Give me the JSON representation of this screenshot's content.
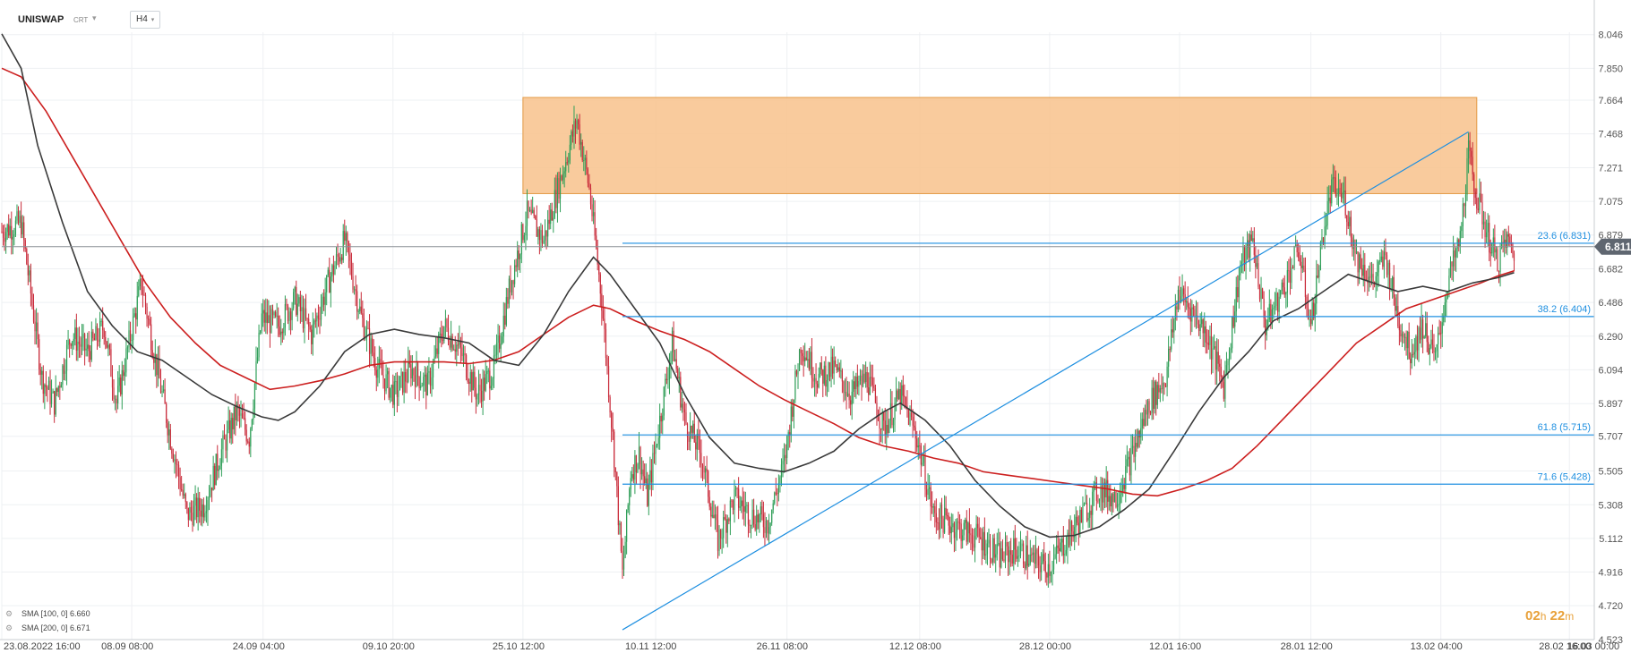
{
  "header": {
    "symbol": "UNISWAP",
    "instrument_type": "CRT",
    "timeframe": "H4"
  },
  "indicators": [
    {
      "label": "SMA [100, 0]",
      "value": "6.660",
      "color": "#3a3a3a"
    },
    {
      "label": "SMA [200, 0]",
      "value": "6.671",
      "color": "#cc1f1f"
    }
  ],
  "countdown": {
    "hours": "02",
    "h_unit": "h",
    "minutes": "22",
    "m_unit": "m"
  },
  "current_price": {
    "label": "6.811",
    "value": 6.811
  },
  "icons": [
    "dropdown-caret-icon",
    "legend-settings-icon"
  ],
  "colors": {
    "bull": "#2e9e57",
    "bear": "#c92b3a",
    "sma100": "#3a3a3a",
    "sma200": "#cc1f1f",
    "fib": "#1e8fe0",
    "trend": "#1e8fe0",
    "zone_fill": "#f8c48f",
    "zone_stroke": "#e39a46",
    "price_tag": "#5f6670",
    "countdown": "#e8a13a"
  },
  "chart_data": {
    "type": "candlestick",
    "symbol": "UNISWAP",
    "timeframe": "H4",
    "y_axis": {
      "range": [
        4.523,
        8.06
      ],
      "tick_labels": [
        "8.046",
        "7.850",
        "7.664",
        "7.468",
        "7.271",
        "7.075",
        "6.879",
        "6.682",
        "6.486",
        "6.290",
        "6.094",
        "5.897",
        "5.707",
        "5.505",
        "5.308",
        "5.112",
        "4.916",
        "4.720",
        "4.523"
      ],
      "tick_values": [
        8.046,
        7.85,
        7.664,
        7.468,
        7.271,
        7.075,
        6.879,
        6.682,
        6.486,
        6.29,
        6.094,
        5.897,
        5.707,
        5.505,
        5.308,
        5.112,
        4.916,
        4.72,
        4.523
      ]
    },
    "x_axis": {
      "range": [
        "2022-08-23 16:00",
        "2023-03-03 16:00"
      ],
      "tick_labels": [
        "23.08.2022  16:00",
        "08.09  08:00",
        "24.09  04:00",
        "09.10  20:00",
        "25.10  12:00",
        "10.11  12:00",
        "26.11  08:00",
        "12.12  08:00",
        "28.12  00:00",
        "12.01  16:00",
        "28.01  12:00",
        "13.02  04:00",
        "28.02  16:00",
        "16.03  00:00"
      ],
      "tick_dates": [
        "2022-08-23 16:00",
        "2022-09-08 08:00",
        "2022-09-24 04:00",
        "2022-10-09 20:00",
        "2022-10-25 12:00",
        "2022-11-10 12:00",
        "2022-11-26 08:00",
        "2022-12-12 08:00",
        "2022-12-28 00:00",
        "2023-01-12 16:00",
        "2023-01-28 12:00",
        "2023-02-13 04:00",
        "2023-02-28 16:00",
        "2023-03-16 00:00"
      ]
    },
    "price_path": [
      [
        "2022-08-23 16:00",
        6.9
      ],
      [
        "2022-08-26 00:00",
        6.95
      ],
      [
        "2022-08-27 00:00",
        6.6
      ],
      [
        "2022-08-28 12:00",
        6.05
      ],
      [
        "2022-08-30 00:00",
        5.9
      ],
      [
        "2022-09-01 00:00",
        6.3
      ],
      [
        "2022-09-03 00:00",
        6.2
      ],
      [
        "2022-09-05 00:00",
        6.35
      ],
      [
        "2022-09-06 12:00",
        5.9
      ],
      [
        "2022-09-08 00:00",
        6.25
      ],
      [
        "2022-09-09 12:00",
        6.6
      ],
      [
        "2022-09-11 00:00",
        6.2
      ],
      [
        "2022-09-13 00:00",
        5.7
      ],
      [
        "2022-09-15 00:00",
        5.25
      ],
      [
        "2022-09-17 00:00",
        5.3
      ],
      [
        "2022-09-19 00:00",
        5.6
      ],
      [
        "2022-09-21 00:00",
        5.85
      ],
      [
        "2022-09-22 12:00",
        5.7
      ],
      [
        "2022-09-24 00:00",
        6.4
      ],
      [
        "2022-09-26 00:00",
        6.35
      ],
      [
        "2022-09-28 00:00",
        6.5
      ],
      [
        "2022-09-30 00:00",
        6.3
      ],
      [
        "2022-10-02 00:00",
        6.6
      ],
      [
        "2022-10-04 00:00",
        6.85
      ],
      [
        "2022-10-06 00:00",
        6.4
      ],
      [
        "2022-10-08 00:00",
        6.1
      ],
      [
        "2022-10-10 00:00",
        5.95
      ],
      [
        "2022-10-12 00:00",
        6.1
      ],
      [
        "2022-10-14 00:00",
        6.0
      ],
      [
        "2022-10-16 00:00",
        6.35
      ],
      [
        "2022-10-18 00:00",
        6.2
      ],
      [
        "2022-10-20 00:00",
        5.95
      ],
      [
        "2022-10-22 00:00",
        6.1
      ],
      [
        "2022-10-24 00:00",
        6.6
      ],
      [
        "2022-10-26 00:00",
        7.0
      ],
      [
        "2022-10-28 00:00",
        6.85
      ],
      [
        "2022-10-30 00:00",
        7.2
      ],
      [
        "2022-11-01 00:00",
        7.55
      ],
      [
        "2022-11-02 12:00",
        7.15
      ],
      [
        "2022-11-04 00:00",
        6.5
      ],
      [
        "2022-11-05 12:00",
        5.6
      ],
      [
        "2022-11-06 12:00",
        4.9
      ],
      [
        "2022-11-07 12:00",
        5.5
      ],
      [
        "2022-11-08 12:00",
        5.6
      ],
      [
        "2022-11-09 12:00",
        5.35
      ],
      [
        "2022-11-11 00:00",
        5.8
      ],
      [
        "2022-11-12 12:00",
        6.25
      ],
      [
        "2022-11-14 00:00",
        5.8
      ],
      [
        "2022-11-16 00:00",
        5.6
      ],
      [
        "2022-11-18 00:00",
        5.1
      ],
      [
        "2022-11-20 00:00",
        5.35
      ],
      [
        "2022-11-22 00:00",
        5.25
      ],
      [
        "2022-11-24 00:00",
        5.2
      ],
      [
        "2022-11-26 00:00",
        5.55
      ],
      [
        "2022-11-28 00:00",
        6.25
      ],
      [
        "2022-11-30 00:00",
        6.05
      ],
      [
        "2022-12-02 00:00",
        6.1
      ],
      [
        "2022-12-04 00:00",
        5.95
      ],
      [
        "2022-12-06 00:00",
        6.05
      ],
      [
        "2022-12-08 00:00",
        5.75
      ],
      [
        "2022-12-10 00:00",
        5.95
      ],
      [
        "2022-12-12 00:00",
        5.7
      ],
      [
        "2022-12-14 00:00",
        5.25
      ],
      [
        "2022-12-16 00:00",
        5.2
      ],
      [
        "2022-12-18 00:00",
        5.15
      ],
      [
        "2022-12-20 00:00",
        5.1
      ],
      [
        "2022-12-22 00:00",
        5.0
      ],
      [
        "2022-12-24 00:00",
        5.05
      ],
      [
        "2022-12-26 00:00",
        4.98
      ],
      [
        "2022-12-28 00:00",
        4.95
      ],
      [
        "2022-12-30 00:00",
        5.1
      ],
      [
        "2023-01-01 00:00",
        5.25
      ],
      [
        "2023-01-03 00:00",
        5.4
      ],
      [
        "2023-01-05 00:00",
        5.35
      ],
      [
        "2023-01-07 00:00",
        5.6
      ],
      [
        "2023-01-09 00:00",
        5.9
      ],
      [
        "2023-01-11 00:00",
        6.05
      ],
      [
        "2023-01-12 12:00",
        6.55
      ],
      [
        "2023-01-14 00:00",
        6.45
      ],
      [
        "2023-01-16 00:00",
        6.3
      ],
      [
        "2023-01-18 00:00",
        6.0
      ],
      [
        "2023-01-20 00:00",
        6.7
      ],
      [
        "2023-01-21 12:00",
        6.85
      ],
      [
        "2023-01-23 00:00",
        6.35
      ],
      [
        "2023-01-25 00:00",
        6.55
      ],
      [
        "2023-01-27 00:00",
        6.8
      ],
      [
        "2023-01-28 12:00",
        6.35
      ],
      [
        "2023-01-30 00:00",
        6.9
      ],
      [
        "2023-01-31 00:00",
        7.15
      ],
      [
        "2023-02-01 12:00",
        7.1
      ],
      [
        "2023-02-03 00:00",
        6.75
      ],
      [
        "2023-02-05 00:00",
        6.6
      ],
      [
        "2023-02-06 12:00",
        6.75
      ],
      [
        "2023-02-08 00:00",
        6.4
      ],
      [
        "2023-02-09 12:00",
        6.2
      ],
      [
        "2023-02-11 00:00",
        6.35
      ],
      [
        "2023-02-12 12:00",
        6.15
      ],
      [
        "2023-02-14 00:00",
        6.6
      ],
      [
        "2023-02-15 12:00",
        6.85
      ],
      [
        "2023-02-16 12:00",
        7.35
      ],
      [
        "2023-02-17 12:00",
        7.1
      ],
      [
        "2023-02-19 00:00",
        6.85
      ],
      [
        "2023-02-20 00:00",
        6.72
      ],
      [
        "2023-02-21 00:00",
        6.85
      ],
      [
        "2023-02-22 00:00",
        6.78
      ]
    ],
    "sma_100": [
      [
        "2022-08-23 16:00",
        8.05
      ],
      [
        "2022-08-26 00:00",
        7.85
      ],
      [
        "2022-08-28 00:00",
        7.4
      ],
      [
        "2022-08-31 00:00",
        6.95
      ],
      [
        "2022-09-03 00:00",
        6.55
      ],
      [
        "2022-09-06 00:00",
        6.35
      ],
      [
        "2022-09-09 00:00",
        6.2
      ],
      [
        "2022-09-12 00:00",
        6.15
      ],
      [
        "2022-09-15 00:00",
        6.05
      ],
      [
        "2022-09-18 00:00",
        5.95
      ],
      [
        "2022-09-21 00:00",
        5.88
      ],
      [
        "2022-09-24 00:00",
        5.82
      ],
      [
        "2022-09-26 00:00",
        5.8
      ],
      [
        "2022-09-28 00:00",
        5.85
      ],
      [
        "2022-10-01 00:00",
        6.0
      ],
      [
        "2022-10-04 00:00",
        6.2
      ],
      [
        "2022-10-07 00:00",
        6.3
      ],
      [
        "2022-10-10 00:00",
        6.33
      ],
      [
        "2022-10-13 00:00",
        6.3
      ],
      [
        "2022-10-16 00:00",
        6.28
      ],
      [
        "2022-10-19 00:00",
        6.25
      ],
      [
        "2022-10-22 00:00",
        6.15
      ],
      [
        "2022-10-25 00:00",
        6.12
      ],
      [
        "2022-10-28 00:00",
        6.3
      ],
      [
        "2022-10-31 00:00",
        6.55
      ],
      [
        "2022-11-03 00:00",
        6.75
      ],
      [
        "2022-11-05 00:00",
        6.65
      ],
      [
        "2022-11-08 00:00",
        6.45
      ],
      [
        "2022-11-11 00:00",
        6.25
      ],
      [
        "2022-11-14 00:00",
        5.95
      ],
      [
        "2022-11-17 00:00",
        5.7
      ],
      [
        "2022-11-20 00:00",
        5.55
      ],
      [
        "2022-11-23 00:00",
        5.52
      ],
      [
        "2022-11-26 00:00",
        5.5
      ],
      [
        "2022-11-29 00:00",
        5.55
      ],
      [
        "2022-12-02 00:00",
        5.62
      ],
      [
        "2022-12-05 00:00",
        5.75
      ],
      [
        "2022-12-08 00:00",
        5.85
      ],
      [
        "2022-12-10 00:00",
        5.9
      ],
      [
        "2022-12-13 00:00",
        5.8
      ],
      [
        "2022-12-16 00:00",
        5.65
      ],
      [
        "2022-12-19 00:00",
        5.45
      ],
      [
        "2022-12-22 00:00",
        5.3
      ],
      [
        "2022-12-25 00:00",
        5.18
      ],
      [
        "2022-12-28 00:00",
        5.12
      ],
      [
        "2022-12-31 00:00",
        5.13
      ],
      [
        "2023-01-03 00:00",
        5.18
      ],
      [
        "2023-01-06 00:00",
        5.28
      ],
      [
        "2023-01-09 00:00",
        5.4
      ],
      [
        "2023-01-12 00:00",
        5.62
      ],
      [
        "2023-01-15 00:00",
        5.85
      ],
      [
        "2023-01-18 00:00",
        6.05
      ],
      [
        "2023-01-21 00:00",
        6.2
      ],
      [
        "2023-01-24 00:00",
        6.38
      ],
      [
        "2023-01-27 00:00",
        6.45
      ],
      [
        "2023-01-30 00:00",
        6.55
      ],
      [
        "2023-02-02 00:00",
        6.65
      ],
      [
        "2023-02-05 00:00",
        6.6
      ],
      [
        "2023-02-08 00:00",
        6.55
      ],
      [
        "2023-02-11 00:00",
        6.58
      ],
      [
        "2023-02-14 00:00",
        6.55
      ],
      [
        "2023-02-17 00:00",
        6.6
      ],
      [
        "2023-02-20 00:00",
        6.63
      ],
      [
        "2023-02-22 00:00",
        6.66
      ]
    ],
    "sma_200": [
      [
        "2022-08-23 16:00",
        7.85
      ],
      [
        "2022-08-26 00:00",
        7.8
      ],
      [
        "2022-08-29 00:00",
        7.6
      ],
      [
        "2022-09-01 00:00",
        7.35
      ],
      [
        "2022-09-04 00:00",
        7.1
      ],
      [
        "2022-09-07 00:00",
        6.85
      ],
      [
        "2022-09-10 00:00",
        6.6
      ],
      [
        "2022-09-13 00:00",
        6.4
      ],
      [
        "2022-09-16 00:00",
        6.25
      ],
      [
        "2022-09-19 00:00",
        6.12
      ],
      [
        "2022-09-22 00:00",
        6.05
      ],
      [
        "2022-09-25 00:00",
        5.98
      ],
      [
        "2022-09-28 00:00",
        6.0
      ],
      [
        "2022-10-01 00:00",
        6.03
      ],
      [
        "2022-10-04 00:00",
        6.07
      ],
      [
        "2022-10-07 00:00",
        6.12
      ],
      [
        "2022-10-10 00:00",
        6.14
      ],
      [
        "2022-10-13 00:00",
        6.14
      ],
      [
        "2022-10-16 00:00",
        6.14
      ],
      [
        "2022-10-19 00:00",
        6.13
      ],
      [
        "2022-10-22 00:00",
        6.15
      ],
      [
        "2022-10-25 00:00",
        6.2
      ],
      [
        "2022-10-28 00:00",
        6.3
      ],
      [
        "2022-10-31 00:00",
        6.4
      ],
      [
        "2022-11-03 00:00",
        6.47
      ],
      [
        "2022-11-05 00:00",
        6.45
      ],
      [
        "2022-11-08 00:00",
        6.38
      ],
      [
        "2022-11-11 00:00",
        6.32
      ],
      [
        "2022-11-14 00:00",
        6.27
      ],
      [
        "2022-11-17 00:00",
        6.2
      ],
      [
        "2022-11-20 00:00",
        6.1
      ],
      [
        "2022-11-23 00:00",
        6.0
      ],
      [
        "2022-11-26 00:00",
        5.92
      ],
      [
        "2022-11-29 00:00",
        5.85
      ],
      [
        "2022-12-02 00:00",
        5.78
      ],
      [
        "2022-12-05 00:00",
        5.7
      ],
      [
        "2022-12-08 00:00",
        5.65
      ],
      [
        "2022-12-11 00:00",
        5.62
      ],
      [
        "2022-12-14 00:00",
        5.58
      ],
      [
        "2022-12-17 00:00",
        5.55
      ],
      [
        "2022-12-20 00:00",
        5.5
      ],
      [
        "2022-12-23 00:00",
        5.48
      ],
      [
        "2022-12-26 00:00",
        5.46
      ],
      [
        "2022-12-29 00:00",
        5.44
      ],
      [
        "2023-01-01 00:00",
        5.42
      ],
      [
        "2023-01-04 00:00",
        5.4
      ],
      [
        "2023-01-07 00:00",
        5.37
      ],
      [
        "2023-01-10 00:00",
        5.36
      ],
      [
        "2023-01-13 00:00",
        5.4
      ],
      [
        "2023-01-16 00:00",
        5.45
      ],
      [
        "2023-01-19 00:00",
        5.52
      ],
      [
        "2023-01-22 00:00",
        5.65
      ],
      [
        "2023-01-25 00:00",
        5.8
      ],
      [
        "2023-01-28 00:00",
        5.95
      ],
      [
        "2023-01-31 00:00",
        6.1
      ],
      [
        "2023-02-03 00:00",
        6.25
      ],
      [
        "2023-02-06 00:00",
        6.35
      ],
      [
        "2023-02-09 00:00",
        6.45
      ],
      [
        "2023-02-12 00:00",
        6.5
      ],
      [
        "2023-02-15 00:00",
        6.55
      ],
      [
        "2023-02-18 00:00",
        6.6
      ],
      [
        "2023-02-20 00:00",
        6.64
      ],
      [
        "2023-02-22 00:00",
        6.67
      ]
    ],
    "resistance_zone": {
      "start": "2022-10-25 12:00",
      "end": "2023-02-17 12:00",
      "low": 7.12,
      "high": 7.68
    },
    "trendline": {
      "start": [
        "2022-11-06 12:00",
        4.58
      ],
      "end": [
        "2023-02-16 12:00",
        7.48
      ]
    },
    "fibonacci_levels": [
      {
        "label": "23.6 (6.831)",
        "value": 6.831
      },
      {
        "label": "38.2 (6.404)",
        "value": 6.404
      },
      {
        "label": "61.8 (5.715)",
        "value": 5.715
      },
      {
        "label": "71.6 (5.428)",
        "value": 5.428
      }
    ],
    "fib_start": "2022-11-06 12:00",
    "current_price_line": 6.811,
    "grid": true,
    "legend_position": "bottom-left"
  }
}
